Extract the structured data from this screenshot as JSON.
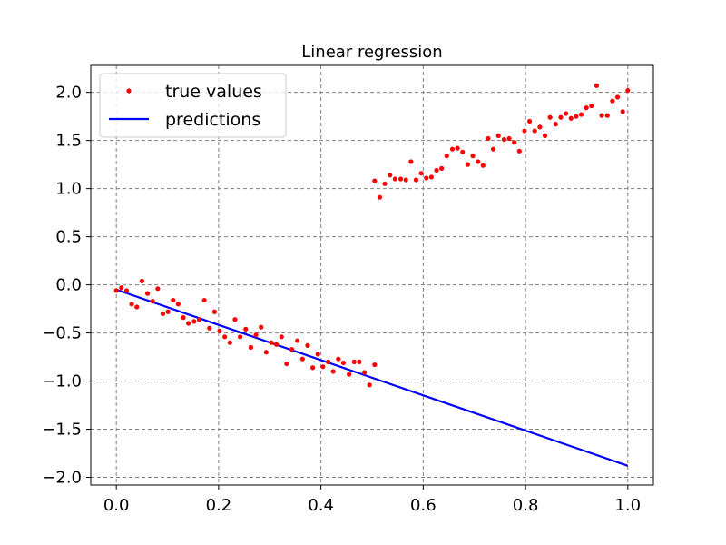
{
  "chart_data": {
    "type": "scatter",
    "title": "Linear regression",
    "xlabel": "",
    "ylabel": "",
    "xlim": [
      -0.05,
      1.05
    ],
    "ylim": [
      -2.08,
      2.28
    ],
    "grid": true,
    "legend_position": "top-left",
    "x_ticks": [
      {
        "value": 0.0,
        "label": "0.0"
      },
      {
        "value": 0.2,
        "label": "0.2"
      },
      {
        "value": 0.4,
        "label": "0.4"
      },
      {
        "value": 0.6,
        "label": "0.6"
      },
      {
        "value": 0.8,
        "label": "0.8"
      },
      {
        "value": 1.0,
        "label": "1.0"
      }
    ],
    "y_ticks": [
      {
        "value": 2.0,
        "label": "2.0"
      },
      {
        "value": 1.5,
        "label": "1.5"
      },
      {
        "value": 1.0,
        "label": "1.0"
      },
      {
        "value": 0.5,
        "label": "0.5"
      },
      {
        "value": 0.0,
        "label": "0.0"
      },
      {
        "value": -0.5,
        "label": "−0.5"
      },
      {
        "value": -1.0,
        "label": "−1.0"
      },
      {
        "value": -1.5,
        "label": "−1.5"
      },
      {
        "value": -2.0,
        "label": "−2.0"
      }
    ],
    "series": [
      {
        "name": "true values",
        "kind": "scatter",
        "color": "#ff0000",
        "points": [
          [
            0.0,
            -0.06
          ],
          [
            0.01,
            -0.03
          ],
          [
            0.02,
            -0.06
          ],
          [
            0.03,
            -0.2
          ],
          [
            0.04,
            -0.23
          ],
          [
            0.05,
            0.04
          ],
          [
            0.061,
            -0.09
          ],
          [
            0.071,
            -0.17
          ],
          [
            0.081,
            -0.04
          ],
          [
            0.091,
            -0.3
          ],
          [
            0.101,
            -0.28
          ],
          [
            0.111,
            -0.16
          ],
          [
            0.121,
            -0.2
          ],
          [
            0.131,
            -0.34
          ],
          [
            0.141,
            -0.4
          ],
          [
            0.152,
            -0.38
          ],
          [
            0.162,
            -0.36
          ],
          [
            0.172,
            -0.16
          ],
          [
            0.182,
            -0.45
          ],
          [
            0.192,
            -0.28
          ],
          [
            0.202,
            -0.48
          ],
          [
            0.212,
            -0.54
          ],
          [
            0.222,
            -0.6
          ],
          [
            0.232,
            -0.36
          ],
          [
            0.242,
            -0.54
          ],
          [
            0.253,
            -0.46
          ],
          [
            0.263,
            -0.65
          ],
          [
            0.273,
            -0.52
          ],
          [
            0.283,
            -0.44
          ],
          [
            0.293,
            -0.7
          ],
          [
            0.303,
            -0.6
          ],
          [
            0.313,
            -0.62
          ],
          [
            0.323,
            -0.54
          ],
          [
            0.333,
            -0.82
          ],
          [
            0.343,
            -0.67
          ],
          [
            0.354,
            -0.58
          ],
          [
            0.364,
            -0.77
          ],
          [
            0.374,
            -0.63
          ],
          [
            0.384,
            -0.86
          ],
          [
            0.394,
            -0.72
          ],
          [
            0.404,
            -0.85
          ],
          [
            0.414,
            -0.8
          ],
          [
            0.424,
            -0.9
          ],
          [
            0.434,
            -0.77
          ],
          [
            0.444,
            -0.81
          ],
          [
            0.455,
            -0.93
          ],
          [
            0.465,
            -0.8
          ],
          [
            0.475,
            -0.8
          ],
          [
            0.485,
            -0.91
          ],
          [
            0.495,
            -1.04
          ],
          [
            0.505,
            -0.83
          ],
          [
            0.505,
            1.08
          ],
          [
            0.515,
            0.91
          ],
          [
            0.525,
            1.05
          ],
          [
            0.535,
            1.14
          ],
          [
            0.545,
            1.1
          ],
          [
            0.556,
            1.1
          ],
          [
            0.566,
            1.09
          ],
          [
            0.576,
            1.28
          ],
          [
            0.586,
            1.09
          ],
          [
            0.596,
            1.16
          ],
          [
            0.606,
            1.11
          ],
          [
            0.616,
            1.12
          ],
          [
            0.626,
            1.19
          ],
          [
            0.636,
            1.21
          ],
          [
            0.646,
            1.34
          ],
          [
            0.657,
            1.41
          ],
          [
            0.667,
            1.42
          ],
          [
            0.677,
            1.38
          ],
          [
            0.687,
            1.25
          ],
          [
            0.697,
            1.34
          ],
          [
            0.707,
            1.28
          ],
          [
            0.717,
            1.24
          ],
          [
            0.727,
            1.52
          ],
          [
            0.737,
            1.41
          ],
          [
            0.747,
            1.55
          ],
          [
            0.758,
            1.51
          ],
          [
            0.768,
            1.52
          ],
          [
            0.778,
            1.48
          ],
          [
            0.788,
            1.39
          ],
          [
            0.798,
            1.6
          ],
          [
            0.808,
            1.7
          ],
          [
            0.818,
            1.6
          ],
          [
            0.828,
            1.64
          ],
          [
            0.838,
            1.55
          ],
          [
            0.848,
            1.74
          ],
          [
            0.859,
            1.67
          ],
          [
            0.869,
            1.74
          ],
          [
            0.879,
            1.78
          ],
          [
            0.889,
            1.73
          ],
          [
            0.899,
            1.75
          ],
          [
            0.909,
            1.77
          ],
          [
            0.919,
            1.84
          ],
          [
            0.929,
            1.86
          ],
          [
            0.939,
            2.07
          ],
          [
            0.949,
            1.76
          ],
          [
            0.96,
            1.76
          ],
          [
            0.97,
            1.91
          ],
          [
            0.98,
            1.95
          ],
          [
            0.99,
            1.8
          ],
          [
            1.0,
            2.02
          ]
        ]
      },
      {
        "name": "predictions",
        "kind": "line",
        "color": "#0000ff",
        "points": [
          [
            0.0,
            -0.05
          ],
          [
            1.0,
            -1.88
          ]
        ]
      }
    ]
  }
}
